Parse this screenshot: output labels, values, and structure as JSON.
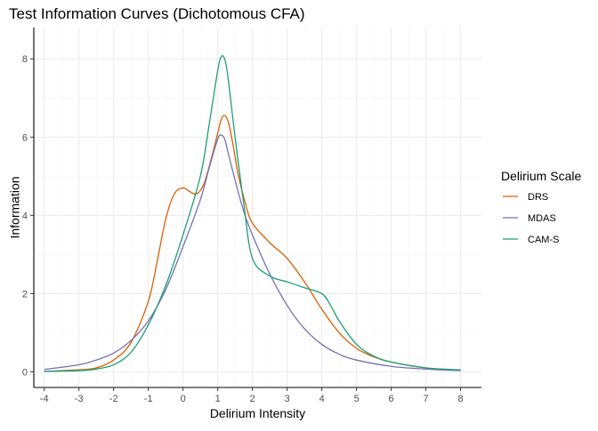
{
  "chart_data": {
    "type": "line",
    "title": "Test Information Curves (Dichotomous CFA)",
    "xlabel": "Delirium Intensity",
    "ylabel": "Information",
    "xlim": [
      -4.3,
      8.6
    ],
    "ylim": [
      -0.4,
      8.8
    ],
    "xticks": [
      -4,
      -3,
      -2,
      -1,
      0,
      1,
      2,
      3,
      4,
      5,
      6,
      7,
      8
    ],
    "yticks": [
      0,
      2,
      4,
      6,
      8
    ],
    "grid": true,
    "legend": {
      "title": "Delirium Scale",
      "position": "right"
    },
    "series": [
      {
        "name": "DRS",
        "color": "#d95f02",
        "x": [
          -4,
          -3,
          -2.5,
          -2,
          -1.5,
          -1,
          -0.75,
          -0.5,
          -0.25,
          0,
          0.2,
          0.4,
          0.6,
          0.8,
          1,
          1.1,
          1.2,
          1.3,
          1.4,
          1.5,
          1.6,
          1.8,
          2,
          2.5,
          3,
          3.5,
          4,
          4.5,
          5,
          5.5,
          6,
          7,
          8
        ],
        "y": [
          0.01,
          0.05,
          0.1,
          0.3,
          0.75,
          1.8,
          2.8,
          3.9,
          4.55,
          4.7,
          4.6,
          4.55,
          4.8,
          5.4,
          6.1,
          6.45,
          6.55,
          6.4,
          6.0,
          5.5,
          5.0,
          4.3,
          3.8,
          3.3,
          2.9,
          2.3,
          1.6,
          1.0,
          0.6,
          0.38,
          0.25,
          0.1,
          0.04
        ]
      },
      {
        "name": "MDAS",
        "color": "#7570b3",
        "x": [
          -4,
          -3,
          -2.5,
          -2,
          -1.5,
          -1,
          -0.5,
          0,
          0.5,
          0.75,
          1,
          1.1,
          1.2,
          1.3,
          1.5,
          1.75,
          2,
          2.5,
          3,
          3.5,
          4,
          4.5,
          5,
          6,
          7,
          8
        ],
        "y": [
          0.06,
          0.18,
          0.3,
          0.48,
          0.8,
          1.3,
          2.1,
          3.2,
          4.4,
          5.2,
          5.95,
          6.05,
          5.95,
          5.6,
          4.9,
          4.1,
          3.5,
          2.5,
          1.7,
          1.1,
          0.7,
          0.45,
          0.3,
          0.14,
          0.07,
          0.03
        ]
      },
      {
        "name": "CAM-S",
        "color": "#1b9e77",
        "x": [
          -4,
          -3,
          -2.5,
          -2,
          -1.5,
          -1,
          -0.5,
          0,
          0.5,
          0.75,
          1,
          1.1,
          1.2,
          1.3,
          1.5,
          1.75,
          2,
          2.5,
          3,
          3.5,
          4,
          4.25,
          4.5,
          5,
          5.5,
          6,
          7,
          8
        ],
        "y": [
          0.01,
          0.03,
          0.07,
          0.18,
          0.5,
          1.2,
          2.2,
          3.5,
          5.0,
          6.3,
          7.7,
          8.05,
          8.0,
          7.5,
          6.0,
          4.3,
          2.9,
          2.45,
          2.3,
          2.15,
          2.0,
          1.7,
          1.3,
          0.7,
          0.4,
          0.25,
          0.1,
          0.05
        ]
      }
    ]
  }
}
